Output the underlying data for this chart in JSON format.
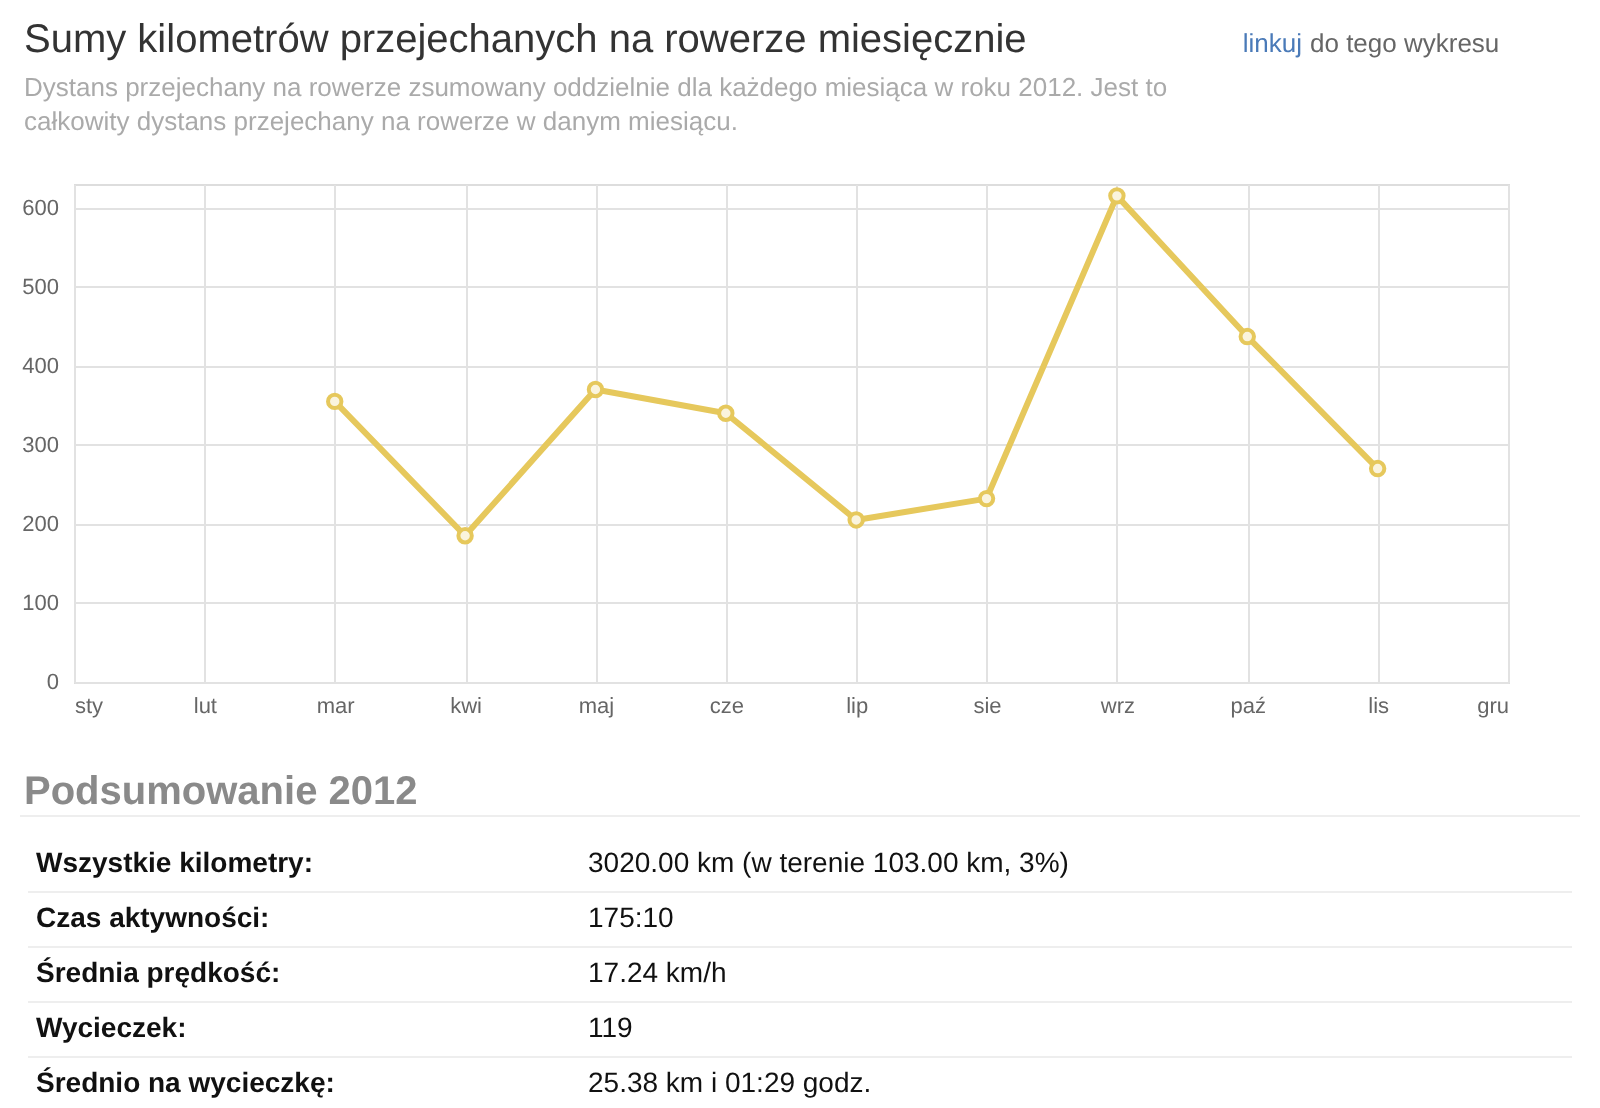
{
  "chart_data": {
    "type": "line",
    "title": "Sumy kilometrów przejechanych na rowerze miesięcznie",
    "subtitle": "Dystans przejechany na rowerze zsumowany oddzielnie dla każdego miesiąca w roku 2012. Jest to całkowity dystans przejechany na rowerze w danym miesiącu.",
    "categories": [
      "sty",
      "lut",
      "mar",
      "kwi",
      "maj",
      "cze",
      "lip",
      "sie",
      "wrz",
      "paź",
      "lis",
      "gru"
    ],
    "series": [
      {
        "color": "#e6c85c",
        "values": [
          null,
          null,
          355,
          185,
          370,
          340,
          205,
          232,
          615,
          437,
          270,
          null
        ]
      }
    ],
    "ylim": [
      0,
      630
    ],
    "yticks": [
      0,
      100,
      200,
      300,
      400,
      500,
      600
    ],
    "grid": true,
    "marker": "circle",
    "line_style": "solid",
    "annotations": [
      "linkuj do tego wykresu",
      "Podsumowanie 2012",
      "Wszystkie kilometry:",
      "3020.00 km (w terenie 103.00 km, 3%)",
      "Czas aktywności:",
      "175:10",
      "Średnia prędkość:",
      "17.24 km/h",
      "Wycieczek:",
      "119",
      "Średnio na wycieczkę:",
      "25.38 km i 01:29 godz."
    ]
  }
}
